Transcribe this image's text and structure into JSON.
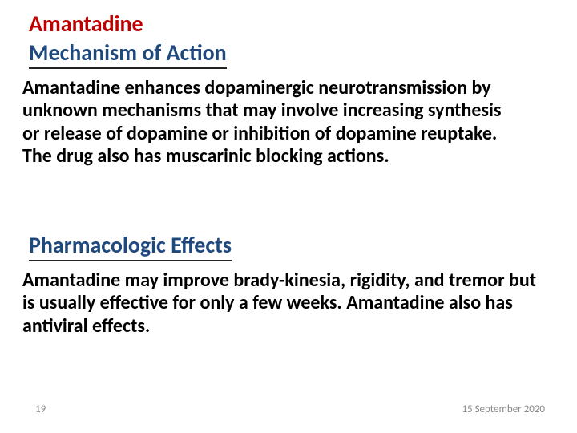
{
  "colors": {
    "title_color": "#c00000",
    "heading_color": "#1f497d",
    "body_color": "#000000",
    "underline_color": "#222222",
    "footer_color": "#8a8a8a",
    "background": "#ffffff"
  },
  "fonts": {
    "title_size_pt": 21,
    "heading_size_pt": 21,
    "body_size_pt": 18,
    "footer_size_pt": 10,
    "weight": "bold",
    "family": "Calibri"
  },
  "title": "Amantadine",
  "sections": [
    {
      "heading": "Mechanism of Action",
      "body": "Amantadine enhances dopaminergic neurotransmission by unknown mechanisms that may involve increasing synthesis or release of dopamine or inhibition of dopamine reuptake. The drug also has muscarinic blocking actions."
    },
    {
      "heading": "Pharmacologic Effects",
      "body": "Amantadine may improve brady-kinesia, rigidity, and tremor but is usually effective for only a few weeks. Amantadine also has antiviral effects."
    }
  ],
  "footer": {
    "page_number": "19",
    "date": "15 September 2020"
  }
}
